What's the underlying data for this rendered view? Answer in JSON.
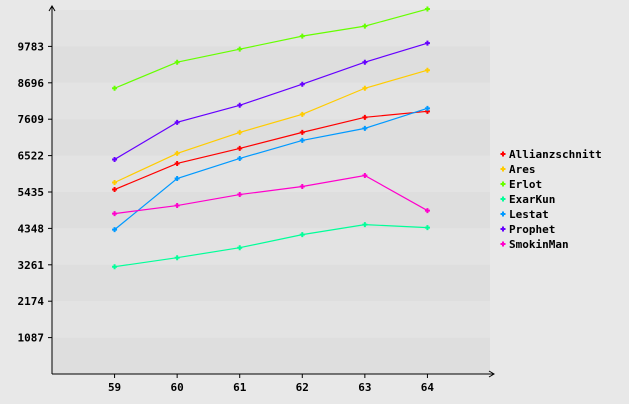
{
  "chart_data": {
    "type": "line",
    "title": "",
    "xlabel": "",
    "ylabel": "",
    "x": [
      59,
      60,
      61,
      62,
      63,
      64
    ],
    "xlim": [
      58,
      65
    ],
    "ylim": [
      0,
      10870
    ],
    "yticks": [
      1087,
      2174,
      3261,
      4348,
      5435,
      6522,
      7609,
      8696,
      9783
    ],
    "grid": "horizontal alternating bands",
    "legend_position": "right",
    "series": [
      {
        "name": "Allianzschnitt",
        "color": "#ff0000",
        "values": [
          5509,
          6287,
          6737,
          7215,
          7665,
          7844
        ]
      },
      {
        "name": "Ares",
        "color": "#ffcc00",
        "values": [
          5719,
          6587,
          7215,
          7754,
          8533,
          9072
        ]
      },
      {
        "name": "Erlot",
        "color": "#66ff00",
        "values": [
          8533,
          9311,
          9700,
          10090,
          10389,
          10898
        ]
      },
      {
        "name": "ExarKun",
        "color": "#00ff99",
        "values": [
          3204,
          3473,
          3772,
          4162,
          4461,
          4371
        ]
      },
      {
        "name": "Lestat",
        "color": "#0099ff",
        "values": [
          4311,
          5838,
          6437,
          6976,
          7335,
          7934
        ]
      },
      {
        "name": "Prophet",
        "color": "#6600ff",
        "values": [
          6407,
          7515,
          8024,
          8653,
          9311,
          9880
        ]
      },
      {
        "name": "SmokinMan",
        "color": "#ff00cc",
        "values": [
          4790,
          5030,
          5359,
          5599,
          5928,
          4880
        ]
      }
    ]
  }
}
